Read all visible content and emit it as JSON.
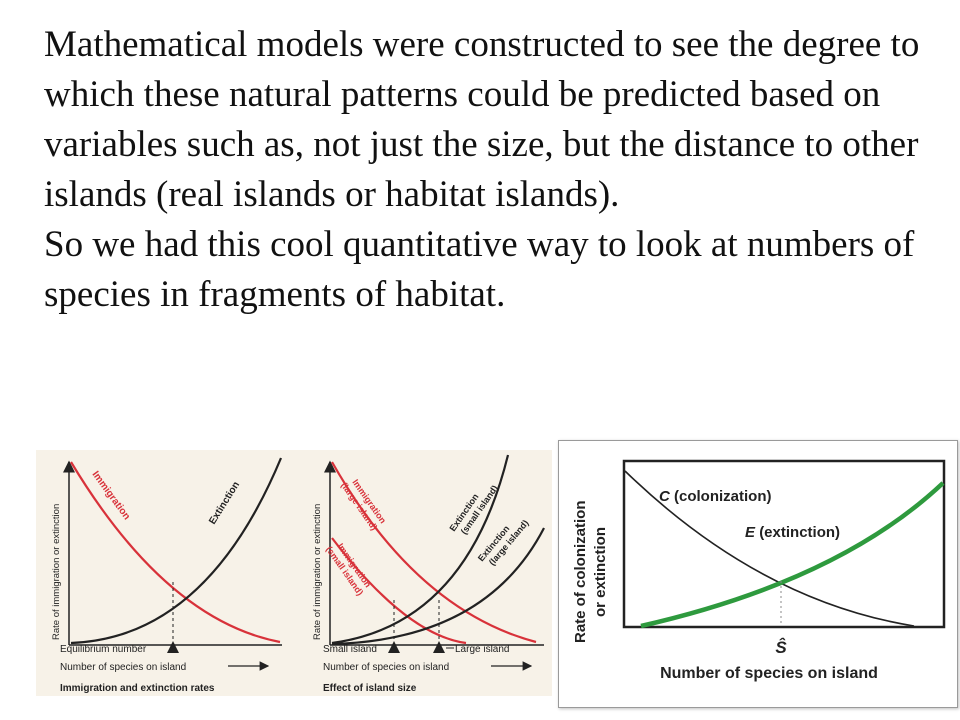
{
  "slide": {
    "paragraph1": "Mathematical models were constructed to see the degree to which these natural patterns could be predicted based on variables such as, not just the size, but the distance to other islands (real islands or habitat islands).",
    "paragraph2": "So we had this cool quantitative way to look at numbers of species in fragments of habitat."
  },
  "diagram_a": {
    "ylabel": "Rate of immigration or extinction",
    "immigration_label": "Immigration",
    "extinction_label": "Extinction",
    "equilibrium_label": "Equilibrium number",
    "xlabel": "Number of species on island",
    "caption": "Immigration and extinction rates",
    "colors": {
      "immigration": "#d8323a",
      "extinction": "#222222"
    }
  },
  "diagram_b": {
    "ylabel": "Rate of immigration or extinction",
    "immigration_large_label": "Immigration",
    "immigration_large_sub": "(large island)",
    "immigration_small_label": "Immigration",
    "immigration_small_sub": "(small island)",
    "extinction_small_label": "Extinction",
    "extinction_small_sub": "(small island)",
    "extinction_large_label": "Extinction",
    "extinction_large_sub": "(large island)",
    "small_island_label": "Small island",
    "large_island_label": "Large island",
    "xlabel": "Number of species on island",
    "caption": "Effect of island size"
  },
  "diagram_c": {
    "ylabel_line1": "Rate of colonization",
    "ylabel_line2": "or extinction",
    "c_symbol": "C",
    "c_text": "(colonization)",
    "e_symbol": "E",
    "e_text": "(extinction)",
    "s_hat": "Ŝ",
    "xlabel": "Number of species on island",
    "colors": {
      "colonization": "#222222",
      "extinction": "#2e9a3e",
      "frame": "#222222"
    }
  }
}
